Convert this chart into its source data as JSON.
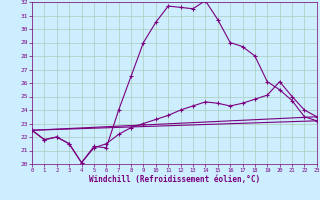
{
  "xlabel": "Windchill (Refroidissement éolien,°C)",
  "bg_color": "#cceeff",
  "line_color": "#7b0080",
  "grid_color": "#aaccbb",
  "xmin": 0,
  "xmax": 23,
  "ymin": 20,
  "ymax": 32,
  "series": [
    {
      "x": [
        0,
        1,
        2,
        3,
        4,
        5,
        6,
        7,
        8,
        9,
        10,
        11,
        12,
        13,
        14,
        15,
        16,
        17,
        18,
        19,
        20,
        21,
        22,
        23
      ],
      "y": [
        22.5,
        21.8,
        22.0,
        21.5,
        20.1,
        21.3,
        21.2,
        24.0,
        26.5,
        29.0,
        30.5,
        31.7,
        31.6,
        31.5,
        32.1,
        30.7,
        29.0,
        28.7,
        28.0,
        26.1,
        25.5,
        24.7,
        23.5,
        23.2
      ]
    },
    {
      "x": [
        0,
        1,
        2,
        3,
        4,
        5,
        6,
        7,
        8,
        9,
        10,
        11,
        12,
        13,
        14,
        15,
        16,
        17,
        18,
        19,
        20,
        21,
        22,
        23
      ],
      "y": [
        22.5,
        21.8,
        22.0,
        21.5,
        20.1,
        21.2,
        21.5,
        22.2,
        22.7,
        23.0,
        23.3,
        23.6,
        24.0,
        24.3,
        24.6,
        24.5,
        24.3,
        24.5,
        24.8,
        25.1,
        26.1,
        25.0,
        24.0,
        23.5
      ]
    },
    {
      "x": [
        0,
        23
      ],
      "y": [
        22.5,
        23.2
      ]
    },
    {
      "x": [
        0,
        23
      ],
      "y": [
        22.5,
        23.5
      ]
    }
  ]
}
